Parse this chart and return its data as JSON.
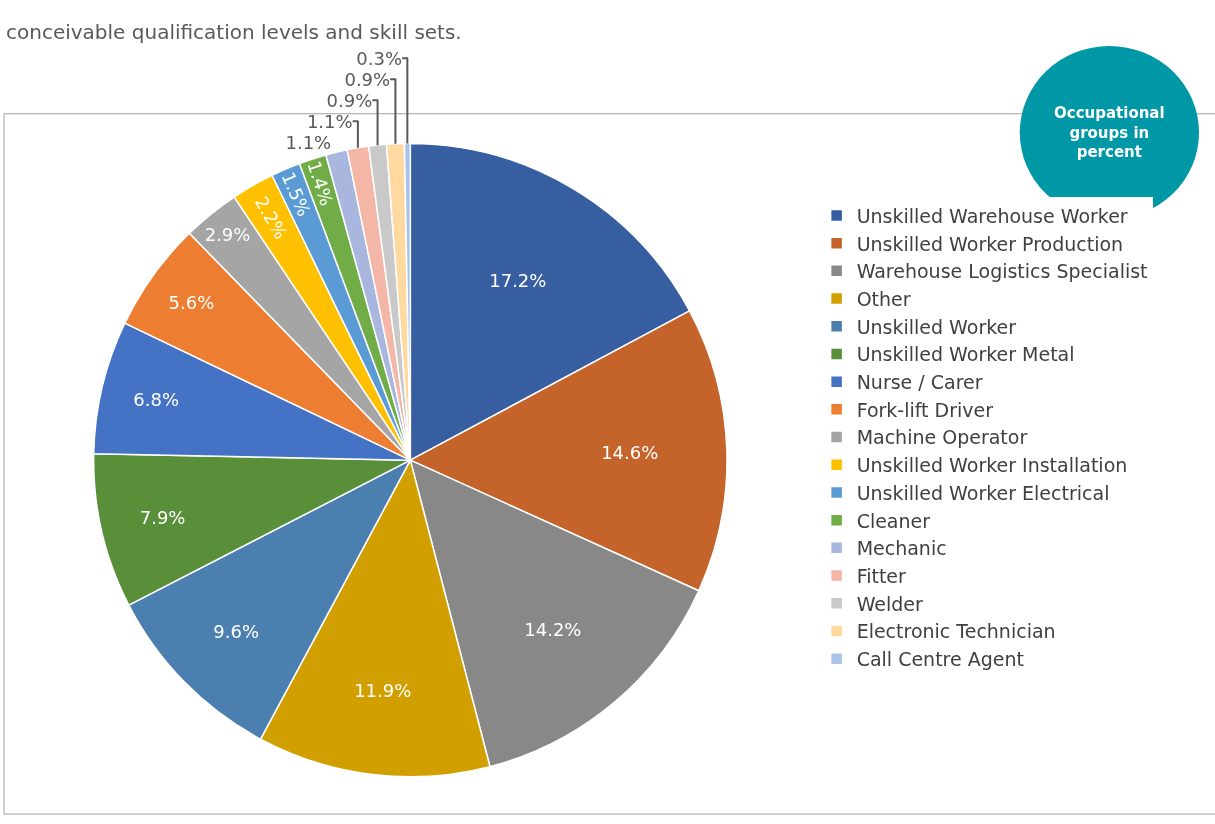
{
  "chart_data": {
    "type": "pie",
    "title": "Occupational groups in percent",
    "categories": [
      "Unskilled Warehouse Worker",
      "Unskilled Worker Production",
      "Warehouse Logistics Specialist",
      "Other",
      "Unskilled Worker",
      "Unskilled Worker Metal",
      "Nurse / Carer",
      "Fork-lift Driver",
      "Machine Operator",
      "Unskilled Worker Installation",
      "Unskilled Worker Electrical",
      "Cleaner",
      "Mechanic",
      "Fitter",
      "Welder",
      "Electronic Technician",
      "Call Centre Agent"
    ],
    "values": [
      17.2,
      14.6,
      14.2,
      11.9,
      9.6,
      7.9,
      6.8,
      5.6,
      2.9,
      2.2,
      1.5,
      1.4,
      1.1,
      1.1,
      0.9,
      0.9,
      0.3
    ],
    "value_labels": [
      "17.2%",
      "14.6%",
      "14.2%",
      "11.9%",
      "9.6%",
      "7.9%",
      "6.8%",
      "5.6%",
      "2.9%",
      "2.2%",
      "1.5%",
      "1.4%",
      "1.1%",
      "1.1%",
      "0.9%",
      "0.9%",
      "0.3%"
    ],
    "colors": [
      "#375ea1",
      "#c5642a",
      "#888888",
      "#d1a000",
      "#4a7fb0",
      "#5a8f3a",
      "#4472c4",
      "#ed7d31",
      "#a5a5a5",
      "#ffc000",
      "#5b9bd5",
      "#70ad47",
      "#a9b6dd",
      "#f4b6a6",
      "#c9c9c9",
      "#ffd9a0",
      "#a9c4e8"
    ],
    "legend": "right",
    "annotations": [
      "conceivable qualification levels and skill sets."
    ]
  }
}
